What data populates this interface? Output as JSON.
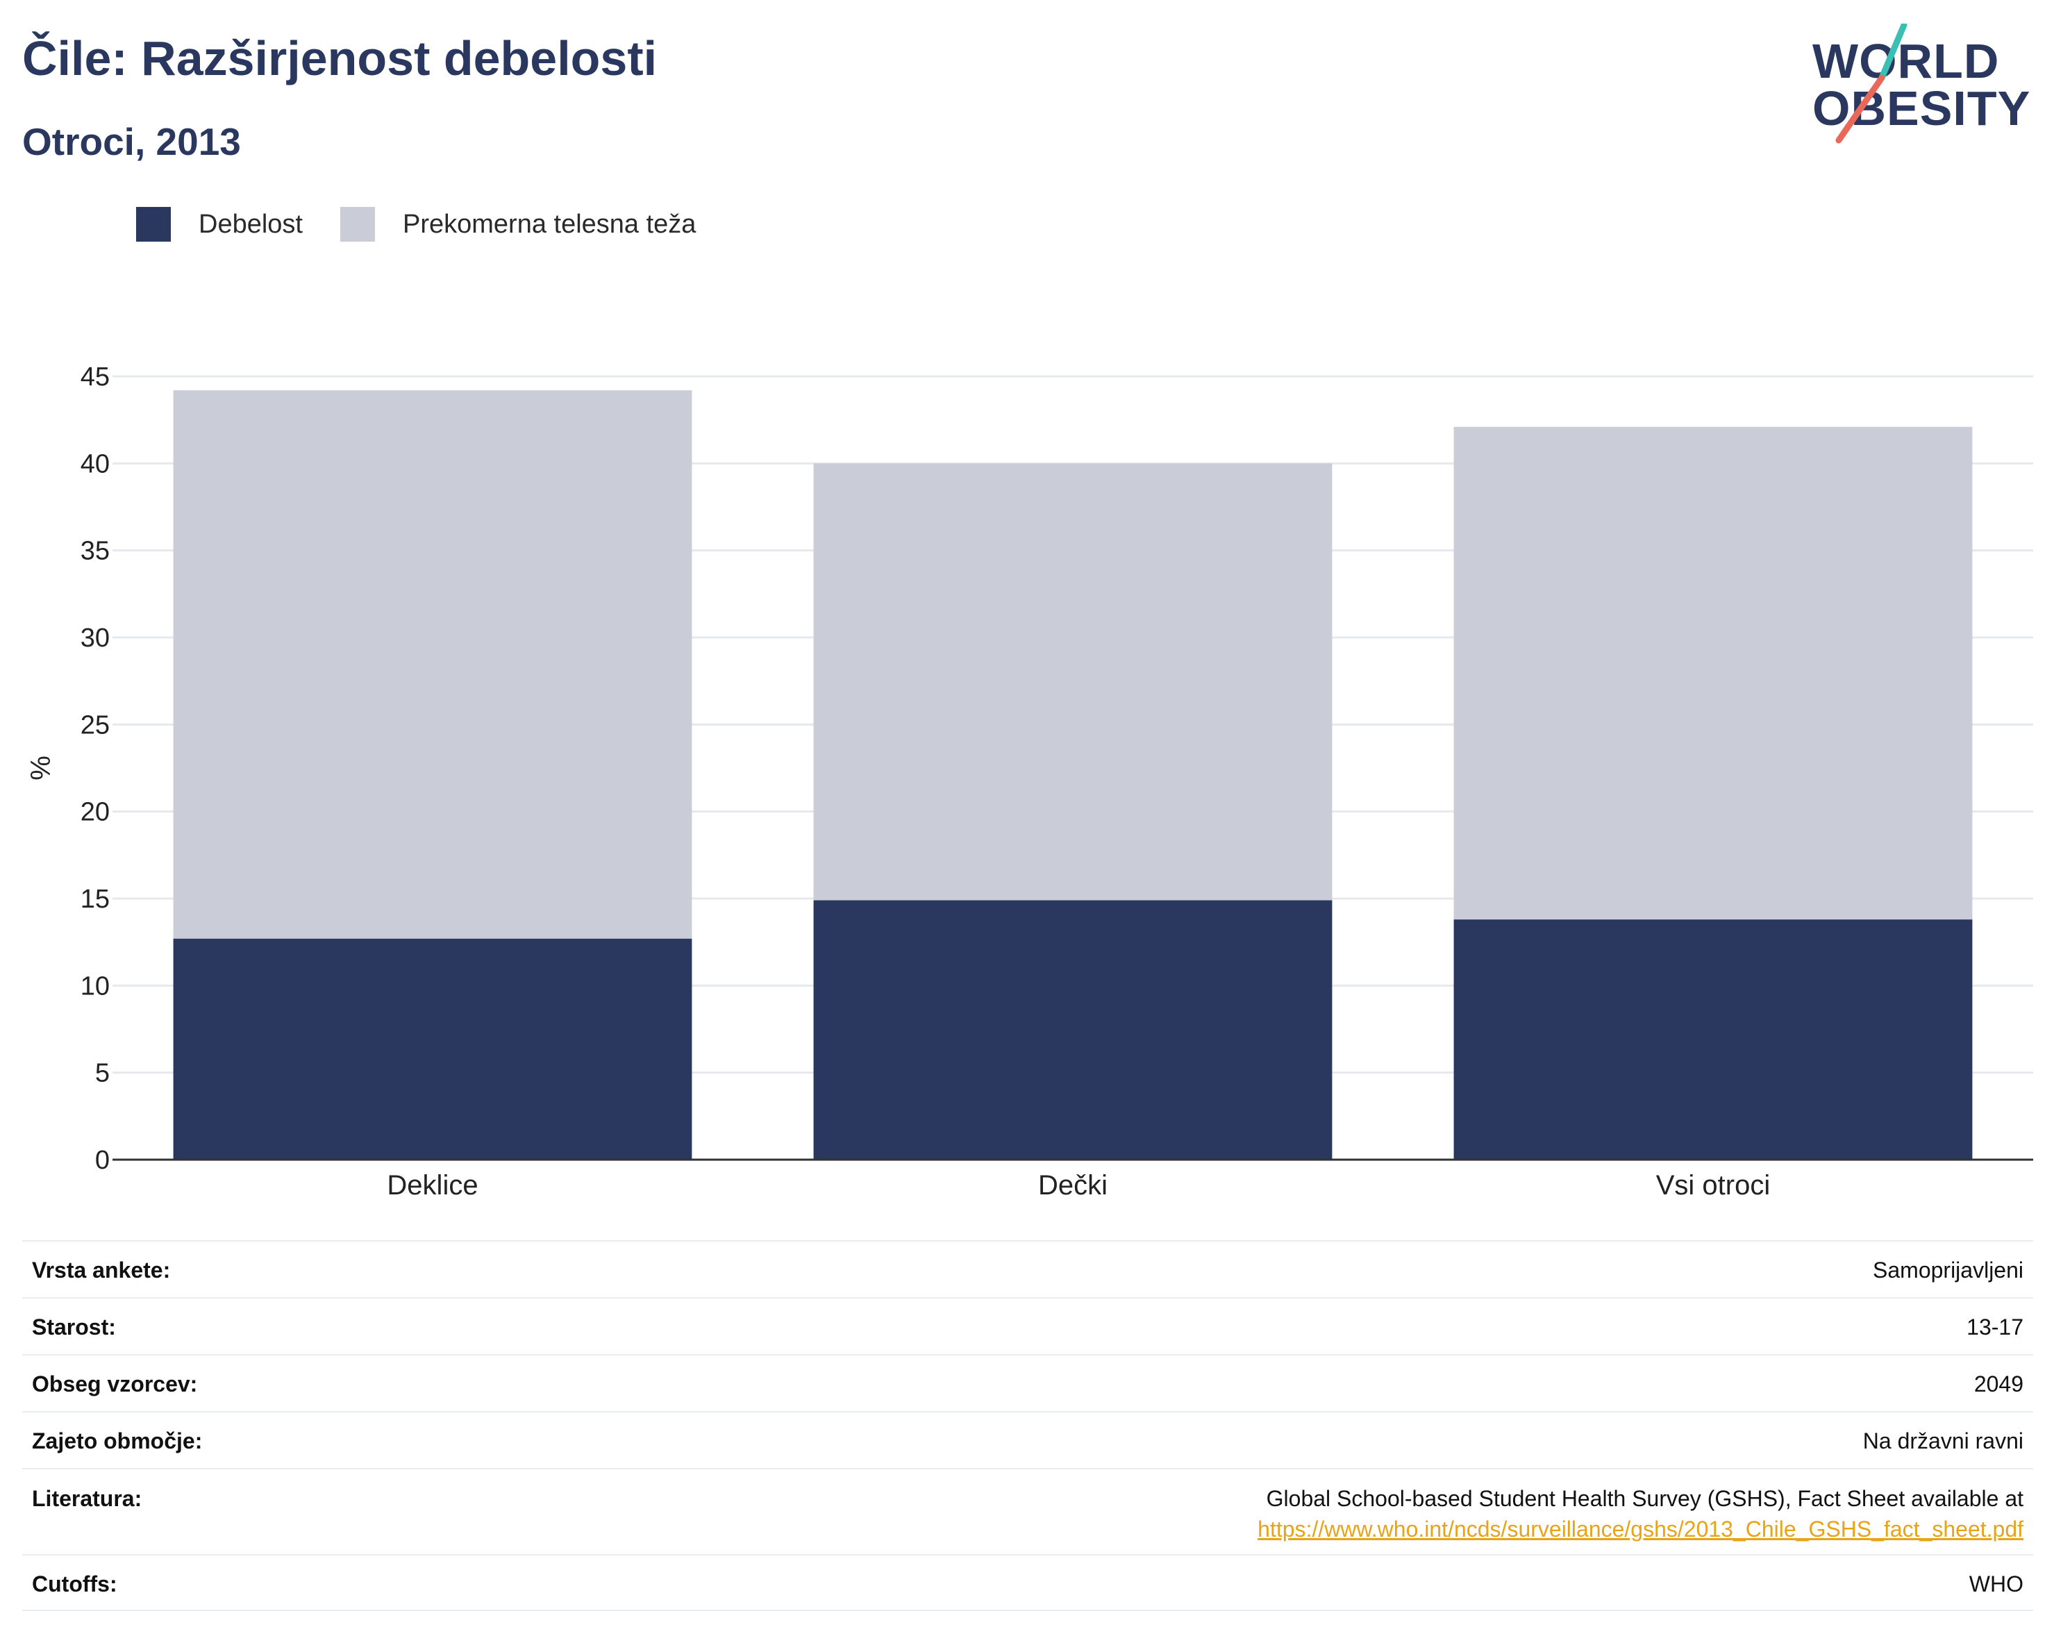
{
  "title": "Čile: Razširjenost debelosti",
  "subtitle": "Otroci, 2013",
  "logo": {
    "line1": "WORLD",
    "line2": "OBESITY"
  },
  "colors": {
    "obesity": "#2a375f",
    "overweight": "#cacdd8",
    "accent_teal": "#3bbfb5",
    "accent_red": "#e8685a",
    "link": "#e8a317"
  },
  "legend": [
    {
      "label": "Debelost",
      "color": "#2a375f"
    },
    {
      "label": "Prekomerna telesna teža",
      "color": "#cacdd8"
    }
  ],
  "chart_data": {
    "type": "bar",
    "stacked": true,
    "categories": [
      "Deklice",
      "Dečki",
      "Vsi otroci"
    ],
    "series": [
      {
        "name": "Debelost",
        "values": [
          12.7,
          14.9,
          13.8
        ]
      },
      {
        "name": "Prekomerna telesna teža",
        "values": [
          31.5,
          25.1,
          28.3
        ]
      }
    ],
    "ylabel": "%",
    "ylim": [
      0,
      45
    ],
    "yticks": [
      0,
      5,
      10,
      15,
      20,
      25,
      30,
      35,
      40,
      45
    ],
    "grid": true,
    "legend_position": "top-left"
  },
  "info": {
    "survey_type": {
      "label": "Vrsta ankete:",
      "value": "Samoprijavljeni"
    },
    "age": {
      "label": "Starost:",
      "value": "13-17"
    },
    "sample": {
      "label": "Obseg vzorcev:",
      "value": "2049"
    },
    "area": {
      "label": "Zajeto območje:",
      "value": "Na državni ravni"
    },
    "literature": {
      "label": "Literatura:",
      "value": "Global School-based Student Health Survey (GSHS), Fact Sheet available at",
      "link": "https://www.who.int/ncds/surveillance/gshs/2013_Chile_GSHS_fact_sheet.pdf"
    },
    "cutoffs": {
      "label": "Cutoffs:",
      "value": "WHO"
    }
  }
}
